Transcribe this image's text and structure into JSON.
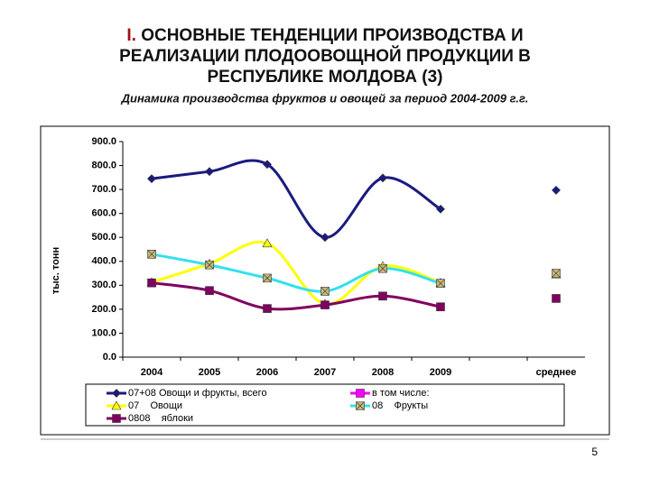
{
  "header": {
    "number": "I.",
    "title_lines": [
      "ОСНОВНЫЕ ТЕНДЕНЦИИ ПРОИЗВОДСТВА И",
      "РЕАЛИЗАЦИИ ПЛОДООВОЩНОЙ ПРОДУКЦИИ В",
      "РЕСПУБЛИКЕ МОЛДОВА  (3)"
    ]
  },
  "page_number": "5",
  "chart_data": {
    "type": "line",
    "title": "Динамика производства фруктов и овощей за период 2004-2009 г.г.",
    "y_label": "тыс. тонн",
    "categories": [
      "2004",
      "2005",
      "2006",
      "2007",
      "2008",
      "2009",
      null,
      "среднее"
    ],
    "ylim": [
      0,
      900
    ],
    "yticks": [
      {
        "value": 0,
        "label": "0.0"
      },
      {
        "value": 100,
        "label": "100.0"
      },
      {
        "value": 200,
        "label": "200.0"
      },
      {
        "value": 300,
        "label": "300.0"
      },
      {
        "value": 400,
        "label": "400.0"
      },
      {
        "value": 500,
        "label": "500.0"
      },
      {
        "value": 600,
        "label": "600.0"
      },
      {
        "value": 700,
        "label": "700.0"
      },
      {
        "value": 800,
        "label": "800.0"
      },
      {
        "value": 900,
        "label": "900.0"
      }
    ],
    "smooth": true,
    "series": [
      {
        "name": "07+08 Овощи и фрукты, всего",
        "color": "#1a1a80",
        "marker": "diamond",
        "values": [
          745,
          775,
          805,
          500,
          748,
          618,
          null,
          697
        ]
      },
      {
        "name": "в том числе:",
        "color": "#ff00ff",
        "marker": "square",
        "values": [
          null,
          null,
          null,
          null,
          null,
          null,
          null,
          null
        ]
      },
      {
        "name": "07    Овощи",
        "color": "#ffff00",
        "marker": "triangle",
        "values": [
          312,
          390,
          475,
          222,
          380,
          310,
          null,
          345
        ]
      },
      {
        "name": "08    Фрукты",
        "color": "#33e0f0",
        "marker": "xsquare",
        "values": [
          430,
          385,
          330,
          275,
          370,
          308,
          null,
          350
        ]
      },
      {
        "name": "0808    яблоки",
        "color": "#800060",
        "marker": "square",
        "values": [
          310,
          278,
          203,
          218,
          255,
          210,
          null,
          245
        ]
      }
    ]
  }
}
